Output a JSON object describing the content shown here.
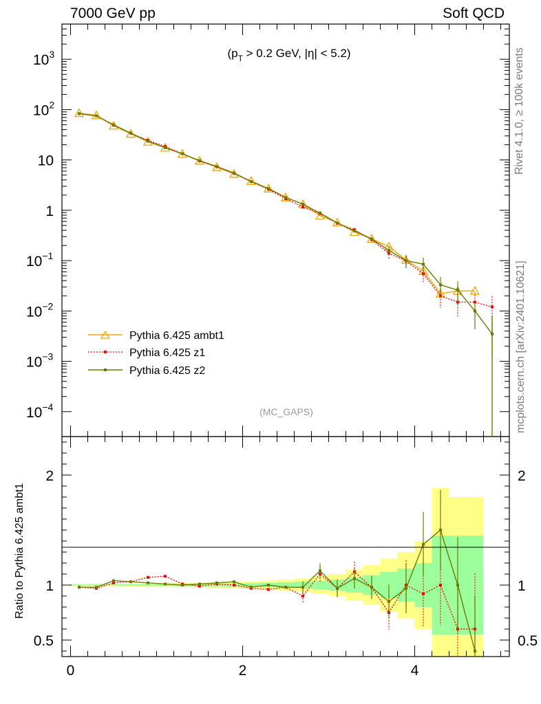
{
  "header": {
    "left": "7000 GeV pp",
    "right": "Soft QCD"
  },
  "side_text": {
    "rivet": "Rivet 4.1.0, ≥ 100k events",
    "mcplots": "mcplots.cern.ch [arXiv:2401.10621]"
  },
  "colors": {
    "ambt1": "#f0a500",
    "z1": "#ff0000",
    "z2": "#6b7a00",
    "band_green": "#9cff9c",
    "band_yellow": "#ffff88"
  },
  "chart_data": [
    {
      "type": "line",
      "panel": "main",
      "title": "(p_T > 0.2 GeV, |η| < 5.2)",
      "annotation": "(MC_GAPS)",
      "yscale": "log",
      "ylim": [
        3.2e-05,
        5000
      ],
      "xlim": [
        -0.1,
        5.1
      ],
      "x_ticks": [
        "0",
        "2",
        "4"
      ],
      "y_ticks": [
        "10^3",
        "10^2",
        "10",
        "1",
        "10^-1",
        "10^-2",
        "10^-3",
        "10^-4"
      ],
      "legend": [
        "Pythia 6.425 ambt1",
        "Pythia 6.425 z1",
        "Pythia 6.425 z2"
      ],
      "x": [
        0.1,
        0.3,
        0.5,
        0.7,
        0.9,
        1.1,
        1.3,
        1.5,
        1.7,
        1.9,
        2.1,
        2.3,
        2.5,
        2.7,
        2.9,
        3.1,
        3.3,
        3.5,
        3.7,
        3.9,
        4.1,
        4.3,
        4.5,
        4.7,
        4.9
      ],
      "series": [
        {
          "name": "Pythia 6.425 ambt1",
          "values": [
            85,
            77,
            48,
            33,
            23,
            17.5,
            13.2,
            9.6,
            7.2,
            5.3,
            3.8,
            2.7,
            1.8,
            1.32,
            0.78,
            0.57,
            0.37,
            0.27,
            0.19,
            0.103,
            0.062,
            0.022,
            0.025,
            0.025,
            null
          ]
        },
        {
          "name": "Pythia 6.425 z1",
          "values": [
            83,
            75,
            49,
            34,
            24.5,
            18.5,
            13.3,
            9.5,
            7.3,
            5.4,
            3.7,
            2.6,
            1.7,
            1.16,
            0.86,
            0.55,
            0.41,
            0.26,
            0.14,
            0.098,
            0.055,
            0.02,
            0.015,
            0.015,
            0.012
          ]
        },
        {
          "name": "Pythia 6.425 z2",
          "values": [
            83,
            75,
            50,
            34,
            23.5,
            17.5,
            13.2,
            9.7,
            7.4,
            5.5,
            3.7,
            2.7,
            1.8,
            1.32,
            0.88,
            0.56,
            0.39,
            0.27,
            0.16,
            0.1,
            0.085,
            0.033,
            0.026,
            0.01,
            0.0035
          ]
        }
      ]
    },
    {
      "type": "line",
      "panel": "ratio",
      "ylabel": "Ratio to Pythia 6.425 ambt1",
      "ylim": [
        0.35,
        2.35
      ],
      "xlim": [
        -0.1,
        5.1
      ],
      "x_ticks": [
        "0",
        "2",
        "4"
      ],
      "y_ticks": [
        "0.5",
        "1",
        "2"
      ],
      "x": [
        0.1,
        0.3,
        0.5,
        0.7,
        0.9,
        1.1,
        1.3,
        1.5,
        1.7,
        1.9,
        2.1,
        2.3,
        2.5,
        2.7,
        2.9,
        3.1,
        3.3,
        3.5,
        3.7,
        3.9,
        4.1,
        4.3,
        4.5,
        4.7
      ],
      "band_inner_halfwidth": [
        0.005,
        0.005,
        0.005,
        0.006,
        0.007,
        0.008,
        0.009,
        0.01,
        0.012,
        0.014,
        0.016,
        0.02,
        0.025,
        0.03,
        0.04,
        0.05,
        0.07,
        0.09,
        0.12,
        0.15,
        0.2,
        0.45,
        0.45,
        0.45
      ],
      "band_outer_halfwidth": [
        0.01,
        0.01,
        0.01,
        0.012,
        0.014,
        0.016,
        0.018,
        0.02,
        0.024,
        0.028,
        0.032,
        0.04,
        0.05,
        0.06,
        0.08,
        0.1,
        0.14,
        0.18,
        0.24,
        0.3,
        0.4,
        0.88,
        0.8,
        0.8
      ],
      "series": [
        {
          "name": "Pythia 6.425 z1",
          "values": [
            0.98,
            0.97,
            1.02,
            1.03,
            1.07,
            1.08,
            1.01,
            0.99,
            1.01,
            1.0,
            0.97,
            0.96,
            0.98,
            0.9,
            1.1,
            0.97,
            1.12,
            0.98,
            0.75,
            1.0,
            0.92,
            1.0,
            0.6,
            0.6
          ]
        },
        {
          "name": "Pythia 6.425 z2",
          "values": [
            0.98,
            0.98,
            1.04,
            1.03,
            1.02,
            1.01,
            1.0,
            1.01,
            1.02,
            1.03,
            0.98,
            1.0,
            0.98,
            0.98,
            1.13,
            0.97,
            1.06,
            0.98,
            0.85,
            0.97,
            1.37,
            1.5,
            1.0,
            0.4
          ]
        }
      ]
    }
  ]
}
